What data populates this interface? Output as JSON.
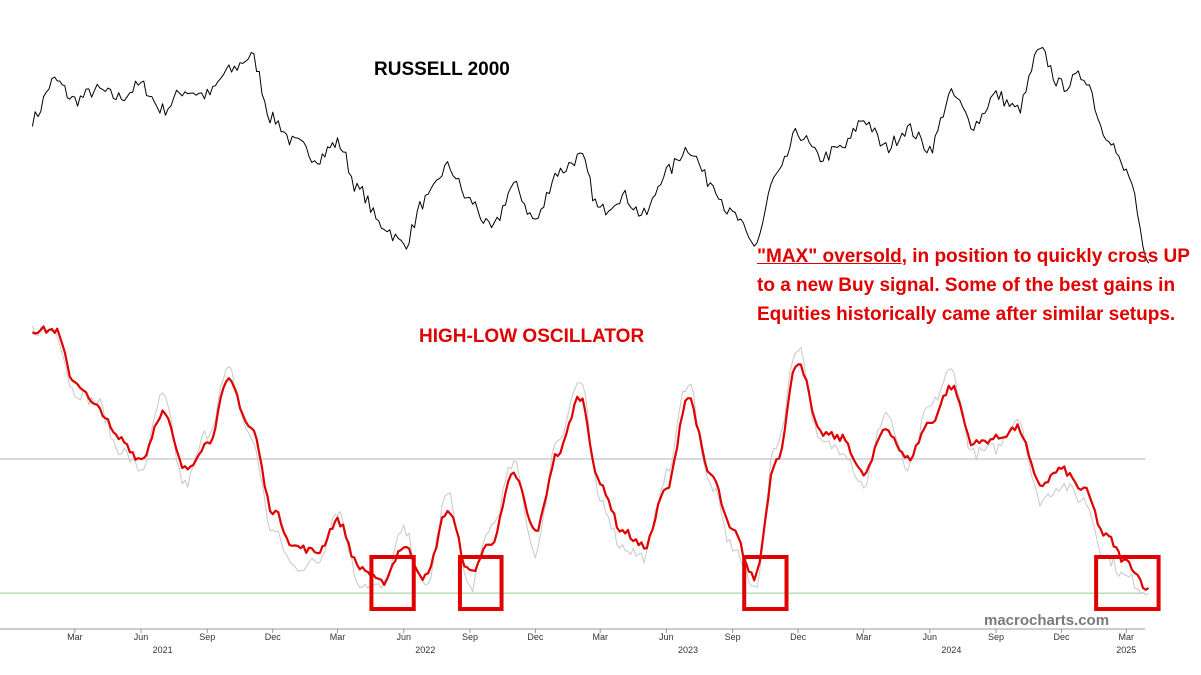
{
  "chart_data": {
    "type": "line",
    "title": "RUSSELL 2000",
    "panels": [
      {
        "name": "RUSSELL 2000",
        "type": "line",
        "title": "RUSSELL 2000",
        "color": "#000000",
        "series": [
          {
            "name": "RUSSELL 2000",
            "x": [
              "2021-01",
              "2021-02",
              "2021-03",
              "2021-04",
              "2021-05",
              "2021-06",
              "2021-07",
              "2021-08",
              "2021-09",
              "2021-10",
              "2021-11",
              "2021-12",
              "2022-01",
              "2022-02",
              "2022-03",
              "2022-04",
              "2022-05",
              "2022-06",
              "2022-07",
              "2022-08",
              "2022-09",
              "2022-10",
              "2022-11",
              "2022-12",
              "2023-01",
              "2023-02",
              "2023-03",
              "2023-04",
              "2023-05",
              "2023-06",
              "2023-07",
              "2023-08",
              "2023-09",
              "2023-10",
              "2023-11",
              "2023-12",
              "2024-01",
              "2024-02",
              "2024-03",
              "2024-04",
              "2024-05",
              "2024-06",
              "2024-07",
              "2024-08",
              "2024-09",
              "2024-10",
              "2024-11",
              "2024-12",
              "2025-01",
              "2025-02",
              "2025-03",
              "2025-04"
            ],
            "values": [
              0.62,
              0.78,
              0.7,
              0.74,
              0.71,
              0.76,
              0.66,
              0.74,
              0.72,
              0.82,
              0.88,
              0.62,
              0.52,
              0.46,
              0.52,
              0.32,
              0.18,
              0.1,
              0.28,
              0.42,
              0.28,
              0.16,
              0.34,
              0.2,
              0.4,
              0.46,
              0.24,
              0.3,
              0.22,
              0.4,
              0.5,
              0.36,
              0.22,
              0.1,
              0.38,
              0.56,
              0.46,
              0.5,
              0.62,
              0.5,
              0.58,
              0.5,
              0.72,
              0.6,
              0.72,
              0.66,
              0.9,
              0.76,
              0.8,
              0.56,
              0.4,
              0.02
            ]
          }
        ]
      },
      {
        "name": "HIGH-LOW OSCILLATOR",
        "type": "line",
        "title": "HIGH-LOW OSCILLATOR",
        "series": [
          {
            "name": "HIGH-LOW OSCILLATOR",
            "color": "#e00000",
            "x": [
              "2021-01",
              "2021-02",
              "2021-03",
              "2021-04",
              "2021-05",
              "2021-06",
              "2021-07",
              "2021-08",
              "2021-09",
              "2021-10",
              "2021-11",
              "2021-12",
              "2022-01",
              "2022-02",
              "2022-03",
              "2022-04",
              "2022-05",
              "2022-06",
              "2022-07",
              "2022-08",
              "2022-09",
              "2022-10",
              "2022-11",
              "2022-12",
              "2023-01",
              "2023-02",
              "2023-03",
              "2023-04",
              "2023-05",
              "2023-06",
              "2023-07",
              "2023-08",
              "2023-09",
              "2023-10",
              "2023-11",
              "2023-12",
              "2024-01",
              "2024-02",
              "2024-03",
              "2024-04",
              "2024-05",
              "2024-06",
              "2024-07",
              "2024-08",
              "2024-09",
              "2024-10",
              "2024-11",
              "2024-12",
              "2025-01",
              "2025-02",
              "2025-03",
              "2025-04"
            ],
            "values": [
              1.0,
              1.0,
              0.8,
              0.7,
              0.58,
              0.5,
              0.68,
              0.46,
              0.56,
              0.8,
              0.62,
              0.3,
              0.16,
              0.14,
              0.26,
              0.08,
              0.02,
              0.16,
              0.04,
              0.3,
              0.06,
              0.18,
              0.44,
              0.22,
              0.52,
              0.74,
              0.4,
              0.22,
              0.16,
              0.38,
              0.74,
              0.44,
              0.22,
              0.04,
              0.5,
              0.88,
              0.6,
              0.58,
              0.44,
              0.62,
              0.5,
              0.64,
              0.78,
              0.56,
              0.58,
              0.62,
              0.4,
              0.46,
              0.38,
              0.2,
              0.1,
              0.0
            ]
          },
          {
            "name": "raw",
            "color": "#c8c8c8",
            "x": [
              "2021-01",
              "2021-02",
              "2021-03",
              "2021-04",
              "2021-05",
              "2021-06",
              "2021-07",
              "2021-08",
              "2021-09",
              "2021-10",
              "2021-11",
              "2021-12",
              "2022-01",
              "2022-02",
              "2022-03",
              "2022-04",
              "2022-05",
              "2022-06",
              "2022-07",
              "2022-08",
              "2022-09",
              "2022-10",
              "2022-11",
              "2022-12",
              "2023-01",
              "2023-02",
              "2023-03",
              "2023-04",
              "2023-05",
              "2023-06",
              "2023-07",
              "2023-08",
              "2023-09",
              "2023-10",
              "2023-11",
              "2023-12",
              "2024-01",
              "2024-02",
              "2024-03",
              "2024-04",
              "2024-05",
              "2024-06",
              "2024-07",
              "2024-08",
              "2024-09",
              "2024-10",
              "2024-11",
              "2024-12",
              "2025-01",
              "2025-02",
              "2025-03",
              "2025-04"
            ],
            "values": [
              1.0,
              1.0,
              0.76,
              0.72,
              0.54,
              0.46,
              0.74,
              0.4,
              0.6,
              0.84,
              0.58,
              0.22,
              0.08,
              0.1,
              0.3,
              0.02,
              0.0,
              0.22,
              0.0,
              0.36,
              0.0,
              0.24,
              0.48,
              0.14,
              0.58,
              0.8,
              0.34,
              0.16,
              0.12,
              0.44,
              0.8,
              0.4,
              0.16,
              0.0,
              0.56,
              0.94,
              0.56,
              0.54,
              0.4,
              0.68,
              0.46,
              0.7,
              0.84,
              0.52,
              0.54,
              0.66,
              0.34,
              0.4,
              0.34,
              0.12,
              0.04,
              -0.02
            ]
          }
        ],
        "reference_lines": [
          {
            "value": 0.5,
            "color": "#b0b0c8"
          },
          {
            "value": -0.02,
            "color": "#8fd08f"
          }
        ],
        "highlights": [
          {
            "from": "2022-05",
            "to": "2022-06"
          },
          {
            "from": "2022-09",
            "to": "2022-10"
          },
          {
            "from": "2023-10",
            "to": "2023-11"
          },
          {
            "from": "2025-02",
            "to": "2025-04"
          }
        ],
        "highlight_color": "#e00000"
      }
    ],
    "x_axis": {
      "month_ticks": [
        "Mar",
        "Jun",
        "Sep",
        "Dec",
        "Mar",
        "Jun",
        "Sep",
        "Dec",
        "Mar",
        "Jun",
        "Sep",
        "Dec",
        "Mar",
        "Jun",
        "Sep",
        "Dec",
        "Mar"
      ],
      "month_tick_dates": [
        "2021-03",
        "2021-06",
        "2021-09",
        "2021-12",
        "2022-03",
        "2022-06",
        "2022-09",
        "2022-12",
        "2023-03",
        "2023-06",
        "2023-09",
        "2023-12",
        "2024-03",
        "2024-06",
        "2024-09",
        "2024-12",
        "2025-03"
      ],
      "year_ticks": [
        "2021",
        "2022",
        "2023",
        "2024",
        "2025"
      ],
      "year_tick_dates": [
        "2021-07",
        "2022-07",
        "2023-07",
        "2024-07",
        "2025-03"
      ]
    },
    "grid": false,
    "legend": "none"
  },
  "annotation": {
    "highlight": "\"MAX\" oversold",
    "text": ", in position to quickly cross UP to a new Buy signal. Some of the best gains in Equities historically came after similar setups."
  },
  "watermark": "macrocharts.com"
}
